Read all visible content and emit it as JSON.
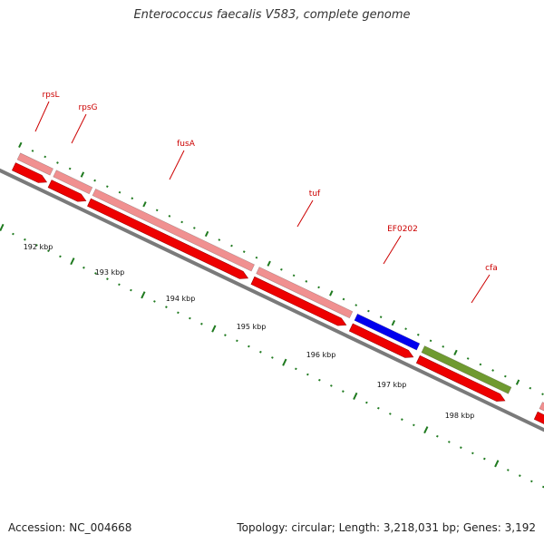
{
  "title": "Enterococcus faecalis V583, complete genome",
  "accession": "Accession: NC_004668",
  "summary": "Topology: circular; Length: 3,218,031 bp; Genes: 3,192",
  "colors": {
    "backbone": "#7a7a7a",
    "tick": "#1f7a1f",
    "label": "#cc0000",
    "cds": "#ee0000",
    "gene_light": "#f09090",
    "highlight_blue": "#0000ee",
    "highlight_green": "#6f9a30"
  },
  "kbp_labels": [
    "192 kbp",
    "193 kbp",
    "194 kbp",
    "195 kbp",
    "196 kbp",
    "197 kbp",
    "198 kbp"
  ],
  "genes": [
    {
      "name": "rpsL",
      "color": "light"
    },
    {
      "name": "rpsG",
      "color": "light"
    },
    {
      "name": "fusA",
      "color": "light"
    },
    {
      "name": "tuf",
      "color": "light"
    },
    {
      "name": "EF0202",
      "color": "blue"
    },
    {
      "name": "cfa",
      "color": "green"
    },
    {
      "name": "",
      "color": "light"
    }
  ]
}
